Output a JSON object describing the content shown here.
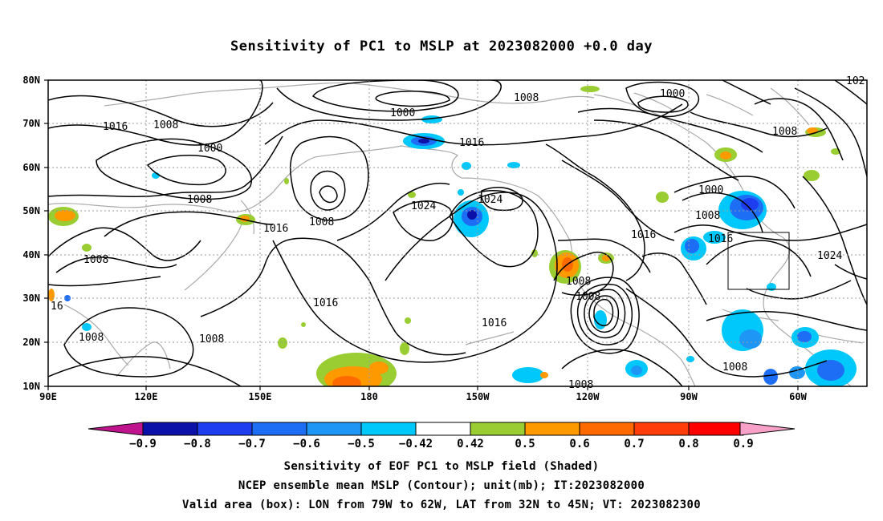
{
  "title": "Sensitivity of PC1 to MSLP at 2023082000 +0.0 day",
  "lat_ticks": [
    "80N",
    "70N",
    "60N",
    "50N",
    "40N",
    "30N",
    "20N",
    "10N"
  ],
  "lon_ticks": [
    "90E",
    "120E",
    "150E",
    "180",
    "150W",
    "120W",
    "90W",
    "60W"
  ],
  "colorbar": {
    "labels": [
      "−0.9",
      "−0.8",
      "−0.7",
      "−0.6",
      "−0.5",
      "−0.42",
      "0.42",
      "0.5",
      "0.6",
      "0.7",
      "0.8",
      "0.9"
    ],
    "colors": [
      "#c0148f",
      "#0a10a8",
      "#1e3cf0",
      "#1e6ef5",
      "#1e96f5",
      "#00c8fa",
      "#ffffff",
      "#9acd32",
      "#ff9900",
      "#ff6a00",
      "#ff3d0a",
      "#ff0000",
      "#f7a1c8"
    ]
  },
  "contour_labels": [
    "1016",
    "1008",
    "1000",
    "1008",
    "1016",
    "1008",
    "1000",
    "1008",
    "1016",
    "1024",
    "1024",
    "1000",
    "1008",
    "1008",
    "1000",
    "1008",
    "1016",
    "1016",
    "1024",
    "1008",
    "1016",
    "1016",
    "1008",
    "1008",
    "16",
    "1008",
    "1016",
    "1008",
    "1008",
    "102"
  ],
  "captions": {
    "line1": "Sensitivity of EOF PC1 to MSLP field (Shaded)",
    "line2": "NCEP ensemble mean MSLP (Contour); unit(mb); IT:2023082000",
    "line3": "Valid area (box): LON from 79W to 62W, LAT from 32N to 45N; VT: 2023082300"
  }
}
